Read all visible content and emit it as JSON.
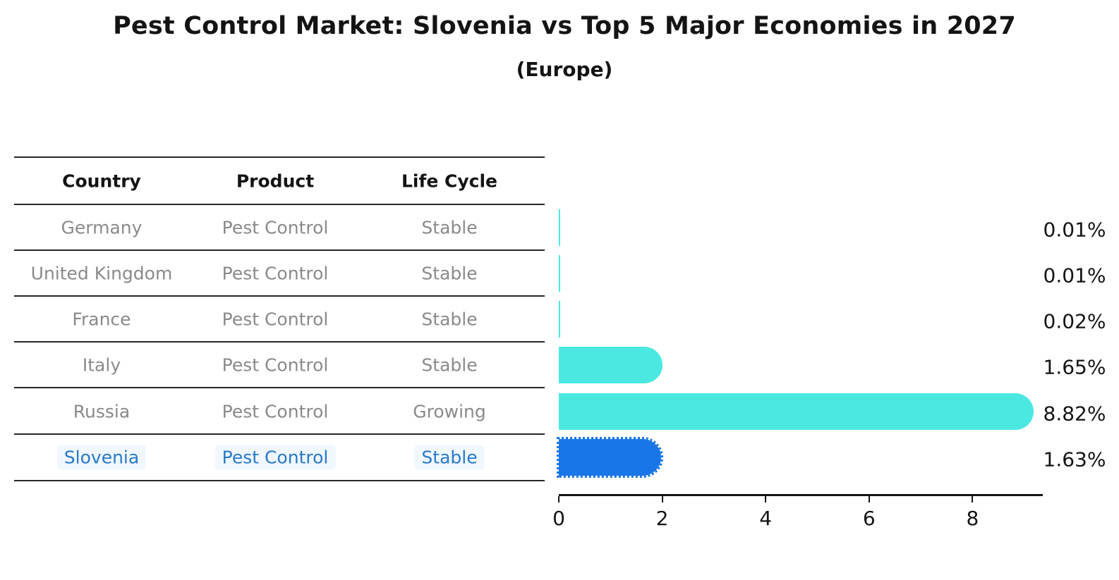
{
  "title": "Pest Control Market: Slovenia vs Top 5 Major Economies in 2027",
  "subtitle": "(Europe)",
  "table": {
    "headers": [
      "Country",
      "Product",
      "Life Cycle"
    ],
    "rows": [
      {
        "country": "Germany",
        "product": "Pest Control",
        "life_cycle": "Stable",
        "highlighted": false
      },
      {
        "country": "United Kingdom",
        "product": "Pest Control",
        "life_cycle": "Stable",
        "highlighted": false
      },
      {
        "country": "France",
        "product": "Pest Control",
        "life_cycle": "Stable",
        "highlighted": false
      },
      {
        "country": "Italy",
        "product": "Pest Control",
        "life_cycle": "Stable",
        "highlighted": false
      },
      {
        "country": "Russia",
        "product": "Pest Control",
        "life_cycle": "Growing",
        "highlighted": false
      },
      {
        "country": "Slovenia",
        "product": "Pest Control",
        "life_cycle": "Stable",
        "highlighted": true
      }
    ]
  },
  "chart_data": {
    "type": "bar",
    "orientation": "horizontal",
    "title": "Pest Control Market: Slovenia vs Top 5 Major Economies in 2027",
    "subtitle": "(Europe)",
    "categories": [
      "Germany",
      "United Kingdom",
      "France",
      "Italy",
      "Russia",
      "Slovenia"
    ],
    "values": [
      0.01,
      0.01,
      0.02,
      1.65,
      8.82,
      1.63
    ],
    "value_labels": [
      "0.01%",
      "0.01%",
      "0.02%",
      "1.65%",
      "8.82%",
      "1.63%"
    ],
    "x_ticks": [
      0,
      2,
      4,
      6,
      8
    ],
    "xlim": [
      0,
      9.35
    ],
    "grid": false,
    "legend": false,
    "highlight_category": "Slovenia",
    "bar_style": "rounded-right-cap, highlight bar has dotted outline"
  },
  "colors": {
    "bar": "#4BE8E2",
    "highlight_bar": "#1976E8",
    "highlight_text": "#2879CB",
    "table_text": "#8A8A8A",
    "header_text": "#141414",
    "axis": "#141414",
    "line": "#262626"
  }
}
